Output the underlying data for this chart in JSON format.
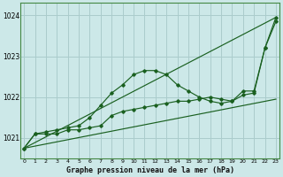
{
  "xlabel": "Graphe pression niveau de la mer (hPa)",
  "ylim": [
    1020.5,
    1024.3
  ],
  "xlim": [
    -0.3,
    23.3
  ],
  "yticks": [
    1021,
    1022,
    1023,
    1024
  ],
  "xticks": [
    0,
    1,
    2,
    3,
    4,
    5,
    6,
    7,
    8,
    9,
    10,
    11,
    12,
    13,
    14,
    15,
    16,
    17,
    18,
    19,
    20,
    21,
    22,
    23
  ],
  "bg_color": "#cce8e8",
  "grid_color": "#aacccc",
  "line_color": "#1a6020",
  "line_marked1": {
    "x": [
      0,
      1,
      2,
      3,
      4,
      5,
      6,
      7,
      8,
      9,
      10,
      11,
      12,
      13,
      14,
      15,
      16,
      17,
      18,
      19,
      20,
      21,
      22,
      23
    ],
    "y": [
      1020.75,
      1021.1,
      1021.15,
      1021.2,
      1021.25,
      1021.3,
      1021.5,
      1021.8,
      1022.1,
      1022.3,
      1022.55,
      1022.65,
      1022.65,
      1022.55,
      1022.3,
      1022.15,
      1022.0,
      1021.9,
      1021.85,
      1021.9,
      1022.15,
      1022.15,
      1023.2,
      1023.95
    ]
  },
  "line_marked2": {
    "x": [
      0,
      1,
      2,
      3,
      4,
      5,
      6,
      7,
      8,
      9,
      10,
      11,
      12,
      13,
      14,
      15,
      16,
      17,
      18,
      19,
      20,
      21,
      22,
      23
    ],
    "y": [
      1020.75,
      1021.1,
      1021.1,
      1021.1,
      1021.2,
      1021.2,
      1021.25,
      1021.3,
      1021.55,
      1021.65,
      1021.7,
      1021.75,
      1021.8,
      1021.85,
      1021.9,
      1021.9,
      1021.95,
      1022.0,
      1021.95,
      1021.9,
      1022.05,
      1022.1,
      1023.2,
      1023.85
    ]
  },
  "line_straight1": {
    "x": [
      0,
      23
    ],
    "y": [
      1020.75,
      1023.95
    ]
  },
  "line_straight2": {
    "x": [
      0,
      23
    ],
    "y": [
      1020.75,
      1021.95
    ]
  }
}
